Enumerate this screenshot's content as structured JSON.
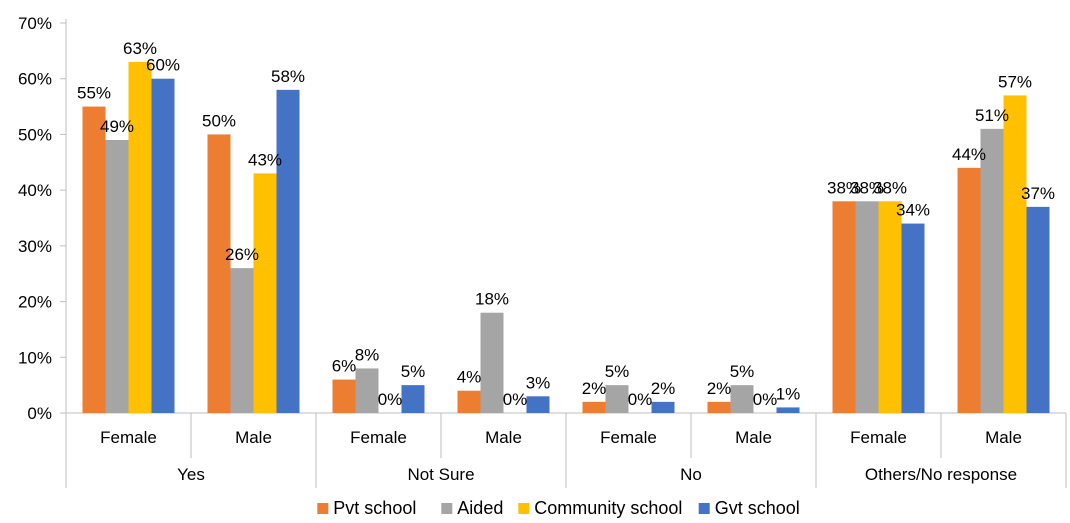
{
  "chart_data": {
    "type": "bar",
    "ylim": [
      0,
      70
    ],
    "yticks": [
      "0%",
      "10%",
      "20%",
      "30%",
      "40%",
      "50%",
      "60%",
      "70%"
    ],
    "groups": [
      {
        "label": "Yes",
        "categories": [
          "Female",
          "Male"
        ]
      },
      {
        "label": "Not Sure",
        "categories": [
          "Female",
          "Male"
        ]
      },
      {
        "label": "No",
        "categories": [
          "Female",
          "Male"
        ]
      },
      {
        "label": "Others/No response",
        "categories": [
          "Female",
          "Male"
        ]
      }
    ],
    "series": [
      {
        "name": "Pvt school",
        "color": "#ED7D31",
        "values": [
          55,
          50,
          6,
          4,
          2,
          2,
          38,
          44
        ],
        "labels": [
          "55%",
          "50%",
          "6%",
          "4%",
          "2%",
          "2%",
          "38%",
          "44%"
        ]
      },
      {
        "name": "Aided",
        "color": "#A5A5A5",
        "values": [
          49,
          26,
          8,
          18,
          5,
          5,
          38,
          51
        ],
        "labels": [
          "49%",
          "26%",
          "8%",
          "18%",
          "5%",
          "5%",
          "38%",
          "51%"
        ]
      },
      {
        "name": "Community school",
        "color": "#FFC000",
        "values": [
          63,
          43,
          0,
          0,
          0,
          0,
          38,
          57
        ],
        "labels": [
          "63%",
          "43%",
          "0%",
          "0%",
          "0%",
          "0%",
          "38%",
          "57%"
        ]
      },
      {
        "name": "Gvt school",
        "color": "#4472C4",
        "values": [
          60,
          58,
          5,
          3,
          2,
          1,
          34,
          37
        ],
        "labels": [
          "60%",
          "58%",
          "5%",
          "3%",
          "2%",
          "1%",
          "34%",
          "37%"
        ]
      }
    ],
    "legend_position": "bottom",
    "grid": false
  }
}
